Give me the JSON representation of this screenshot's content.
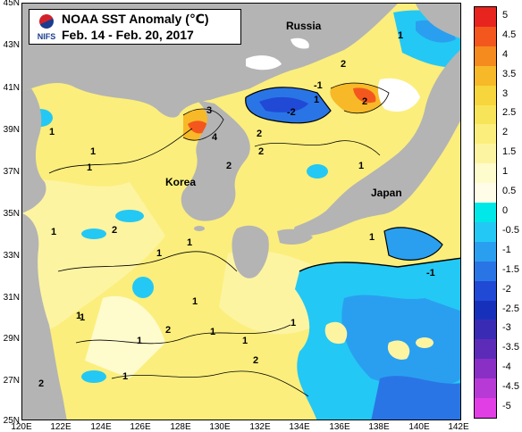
{
  "title": {
    "line1": "NOAA SST Anomaly (℃)",
    "line2": "Feb. 14 - Feb. 20, 2017"
  },
  "logo": {
    "text": "NIFS"
  },
  "axes": {
    "lat_labels": [
      "45N",
      "43N",
      "41N",
      "39N",
      "37N",
      "35N",
      "33N",
      "31N",
      "29N",
      "27N",
      "25N"
    ],
    "lon_labels": [
      "120E",
      "122E",
      "124E",
      "126E",
      "128E",
      "130E",
      "132E",
      "134E",
      "136E",
      "138E",
      "140E",
      "142E"
    ]
  },
  "places": {
    "russia": "Russia",
    "korea": "Korea",
    "japan": "Japan"
  },
  "colorbar": {
    "labels": [
      "5",
      "4.5",
      "4",
      "3.5",
      "3",
      "2.5",
      "2",
      "1.5",
      "1",
      "0.5",
      "0",
      "-0.5",
      "-1",
      "-1.5",
      "-2",
      "-2.5",
      "-3",
      "-3.5",
      "-4",
      "-4.5",
      "-5"
    ],
    "colors": [
      "#e8241f",
      "#f4571d",
      "#f58a1e",
      "#f7b928",
      "#f7d53d",
      "#f8e458",
      "#fbee7c",
      "#fdf4a2",
      "#fefbcd",
      "#fffde8",
      "#00e8e8",
      "#24c8f4",
      "#2a9ff0",
      "#2a75e6",
      "#2049d6",
      "#1730bc",
      "#3a2bb4",
      "#5c2cb8",
      "#8a2fc6",
      "#b83ad6",
      "#e23ee6"
    ]
  },
  "contour_labels": [
    "1",
    "2",
    "3",
    "4",
    "2",
    "1",
    "2",
    "-2",
    "1",
    "1",
    "2",
    "1",
    "1",
    "-1",
    "1",
    "2",
    "1",
    "1",
    "1",
    "2",
    "1",
    "1",
    "1",
    "2",
    "1",
    "1",
    "2",
    "1",
    "1",
    "1",
    "-1",
    "2"
  ],
  "colors": {
    "land": "#b4b4b4",
    "ice": "#ffffff",
    "warm": "#fbee7c",
    "warm_light": "#fdf4a2",
    "cool": "#24c8f4",
    "cool_deep": "#2a9ff0",
    "hot": "#f58a1e"
  }
}
